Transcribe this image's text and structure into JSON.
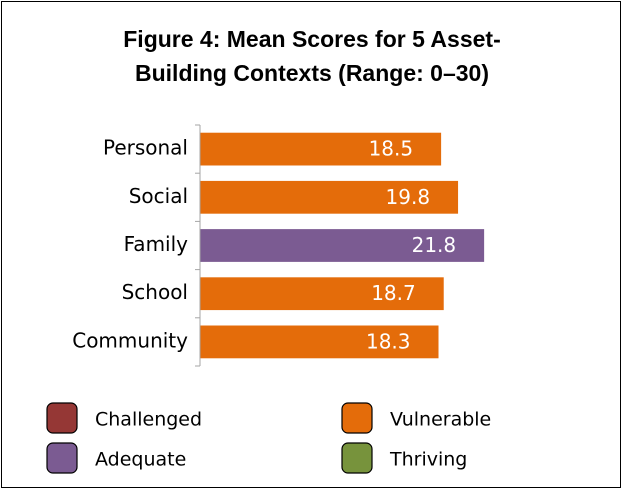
{
  "chart_data": {
    "type": "bar",
    "orientation": "horizontal",
    "title": "Figure 4: Mean Scores for 5 Asset-Building Contexts (Range: 0–30)",
    "categories": [
      "Personal",
      "Social",
      "Family",
      "School",
      "Community"
    ],
    "values": [
      18.5,
      19.8,
      21.8,
      18.7,
      18.3
    ],
    "colors": [
      "#e46c0a",
      "#e46c0a",
      "#7b5b92",
      "#e46c0a",
      "#e46c0a"
    ],
    "xlim": [
      0,
      30
    ],
    "legend": [
      {
        "name": "Challenged",
        "color": "#953735"
      },
      {
        "name": "Vulnerable",
        "color": "#e46c0a"
      },
      {
        "name": "Adequate",
        "color": "#7b5b92"
      },
      {
        "name": "Thriving",
        "color": "#77933c"
      }
    ]
  }
}
